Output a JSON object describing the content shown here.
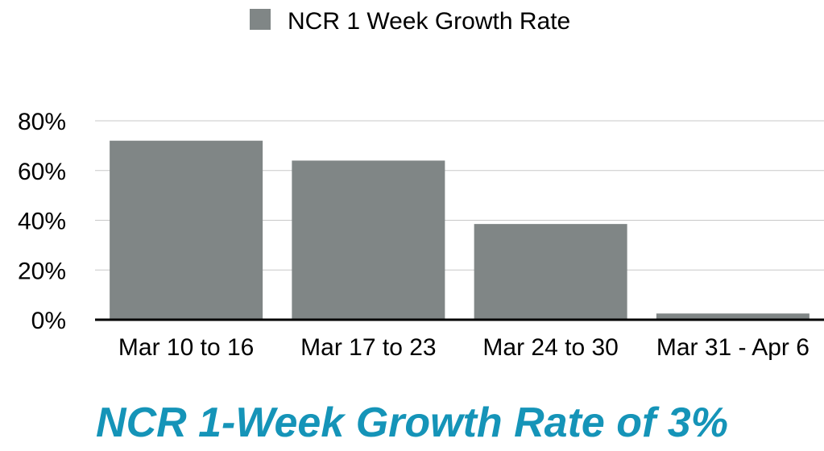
{
  "chart_data": {
    "type": "bar",
    "categories": [
      "Mar 10 to 16",
      "Mar 17 to 23",
      "Mar 24 to 30",
      "Mar 31 - Apr 6"
    ],
    "series": [
      {
        "name": "NCR 1 Week Growth Rate",
        "values": [
          72,
          64,
          38.5,
          2.5
        ]
      }
    ],
    "value_unit": "%",
    "ylim": [
      0,
      80
    ],
    "yticks": [
      0,
      20,
      40,
      60,
      80
    ],
    "ytick_labels": [
      "0%",
      "20%",
      "40%",
      "60%",
      "80%"
    ],
    "grid": true,
    "legend_position": "top-center",
    "title": "",
    "xlabel": "",
    "ylabel": ""
  },
  "colors": {
    "bar": "#808686",
    "headline": "#1594b8"
  },
  "headline": "NCR 1-Week Growth Rate of 3%"
}
